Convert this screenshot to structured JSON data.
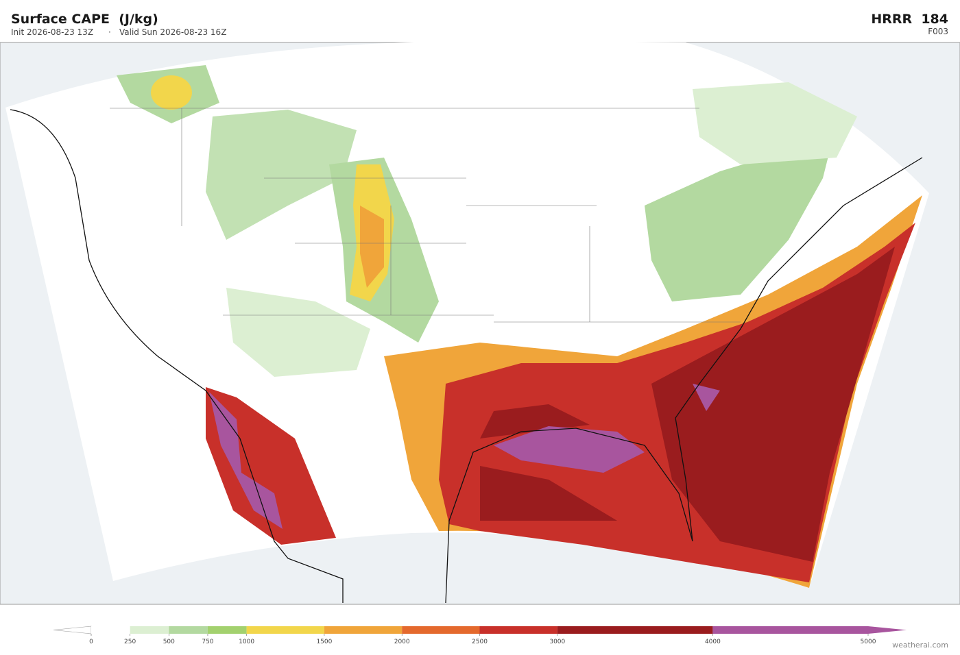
{
  "header": {
    "title": "Surface CAPE  (J/kg)",
    "init": "Init 2026-08-23 13Z",
    "separator": "·",
    "valid": "Valid Sun 2026-08-23 16Z",
    "model": "HRRR  184",
    "forecast_hour": "F003"
  },
  "colorbar": {
    "ticks": [
      0,
      250,
      500,
      750,
      1000,
      1500,
      2000,
      2500,
      3000,
      4000,
      5000
    ],
    "colors": [
      "#ffffff",
      "#dcefd2",
      "#b3d9a0",
      "#a3d16e",
      "#f2d64b",
      "#f0a53a",
      "#e4692d",
      "#c8302a",
      "#9a1c1e",
      "#a8559e"
    ]
  },
  "watermark": "weatherai.com"
}
